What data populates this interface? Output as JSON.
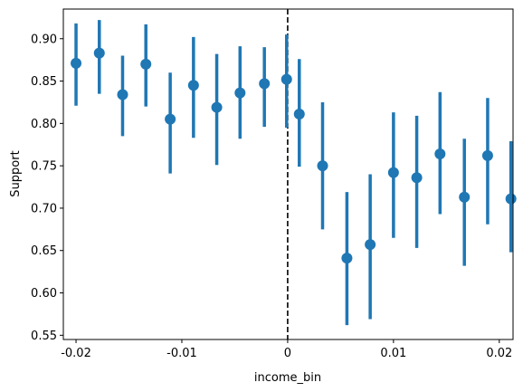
{
  "chart_data": {
    "type": "scatter",
    "title": "",
    "xlabel": "income_bin",
    "ylabel": "Support",
    "xlim": [
      -0.0212,
      0.0213
    ],
    "ylim": [
      0.545,
      0.935
    ],
    "x_ticks": [
      -0.02,
      -0.01,
      0,
      0.01,
      0.02
    ],
    "x_tick_labels": [
      "-0.02",
      "-0.01",
      "0",
      "0.01",
      "0.02"
    ],
    "y_ticks": [
      0.55,
      0.6,
      0.65,
      0.7,
      0.75,
      0.8,
      0.85,
      0.9
    ],
    "y_tick_labels": [
      "0.55",
      "0.60",
      "0.65",
      "0.70",
      "0.75",
      "0.80",
      "0.85",
      "0.90"
    ],
    "grid": false,
    "cutoff_line": {
      "x": 0,
      "style": "dashed",
      "color": "#000000"
    },
    "series": [
      {
        "color": "#1f77b4",
        "points": [
          {
            "x": -0.02,
            "y": 0.871,
            "low": 0.821,
            "high": 0.918
          },
          {
            "x": -0.0178,
            "y": 0.883,
            "low": 0.835,
            "high": 0.922
          },
          {
            "x": -0.0156,
            "y": 0.834,
            "low": 0.785,
            "high": 0.88
          },
          {
            "x": -0.0134,
            "y": 0.87,
            "low": 0.82,
            "high": 0.917
          },
          {
            "x": -0.0111,
            "y": 0.805,
            "low": 0.741,
            "high": 0.86
          },
          {
            "x": -0.0089,
            "y": 0.845,
            "low": 0.783,
            "high": 0.902
          },
          {
            "x": -0.0067,
            "y": 0.819,
            "low": 0.751,
            "high": 0.882
          },
          {
            "x": -0.0045,
            "y": 0.836,
            "low": 0.782,
            "high": 0.891
          },
          {
            "x": -0.0022,
            "y": 0.847,
            "low": 0.796,
            "high": 0.89
          },
          {
            "x": -0.0001,
            "y": 0.852,
            "low": 0.795,
            "high": 0.905
          },
          {
            "x": 0.0011,
            "y": 0.811,
            "low": 0.749,
            "high": 0.876
          },
          {
            "x": 0.0033,
            "y": 0.75,
            "low": 0.675,
            "high": 0.825
          },
          {
            "x": 0.0056,
            "y": 0.641,
            "low": 0.562,
            "high": 0.719
          },
          {
            "x": 0.0078,
            "y": 0.657,
            "low": 0.569,
            "high": 0.74
          },
          {
            "x": 0.01,
            "y": 0.742,
            "low": 0.665,
            "high": 0.813
          },
          {
            "x": 0.0122,
            "y": 0.736,
            "low": 0.653,
            "high": 0.809
          },
          {
            "x": 0.0144,
            "y": 0.764,
            "low": 0.693,
            "high": 0.837
          },
          {
            "x": 0.0167,
            "y": 0.713,
            "low": 0.632,
            "high": 0.782
          },
          {
            "x": 0.0189,
            "y": 0.762,
            "low": 0.681,
            "high": 0.83
          },
          {
            "x": 0.0211,
            "y": 0.711,
            "low": 0.648,
            "high": 0.779
          }
        ]
      }
    ]
  }
}
